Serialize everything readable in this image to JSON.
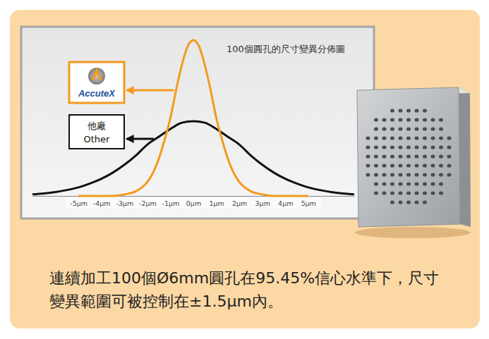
{
  "chart_data": {
    "type": "line",
    "title": "100個圓孔的尺寸變異分佈圖",
    "xlim": [
      -7,
      7
    ],
    "ylim": [
      0,
      1.05
    ],
    "xticks": [
      {
        "value": -5,
        "label": "-5µm"
      },
      {
        "value": -4,
        "label": "-4µm"
      },
      {
        "value": -3,
        "label": "-3µm"
      },
      {
        "value": -2,
        "label": "-2µm"
      },
      {
        "value": -1,
        "label": "-1µm"
      },
      {
        "value": 0,
        "label": "0µm"
      },
      {
        "value": 1,
        "label": "1µm"
      },
      {
        "value": 2,
        "label": "2µm"
      },
      {
        "value": 3,
        "label": "3µm"
      },
      {
        "value": 4,
        "label": "4µm"
      },
      {
        "value": 5,
        "label": "5µm"
      }
    ],
    "tick_labels": "x",
    "grid": false,
    "series": [
      {
        "color": "#f39a1e",
        "x": [
          -5,
          -4.5,
          -4,
          -3.5,
          -3,
          -2.5,
          -2,
          -1.75,
          -1.5,
          -1.25,
          -1,
          -0.75,
          -0.5,
          -0.25,
          0,
          0.25,
          0.5,
          0.75,
          1,
          1.25,
          1.5,
          1.75,
          2,
          2.5,
          3,
          3.5,
          4,
          4.5,
          5
        ],
        "values": [
          0,
          0,
          0,
          0,
          0.01,
          0.03,
          0.09,
          0.15,
          0.24,
          0.36,
          0.5,
          0.68,
          0.84,
          0.96,
          1,
          0.96,
          0.84,
          0.68,
          0.5,
          0.36,
          0.24,
          0.15,
          0.09,
          0.03,
          0.01,
          0,
          0,
          0,
          0
        ]
      },
      {
        "color": "#111111",
        "x": [
          -7,
          -6.5,
          -6,
          -5.5,
          -5,
          -4.5,
          -4,
          -3.5,
          -3,
          -2.5,
          -2,
          -1.5,
          -1,
          -0.5,
          0,
          0.5,
          1,
          1.5,
          2,
          2.5,
          3,
          3.5,
          4,
          4.5,
          5,
          5.5,
          6,
          6.5,
          7
        ],
        "values": [
          0.01,
          0.016,
          0.025,
          0.038,
          0.055,
          0.08,
          0.11,
          0.15,
          0.2,
          0.26,
          0.33,
          0.38,
          0.43,
          0.47,
          0.48,
          0.47,
          0.43,
          0.38,
          0.33,
          0.26,
          0.2,
          0.15,
          0.11,
          0.08,
          0.055,
          0.038,
          0.025,
          0.016,
          0.01
        ]
      }
    ],
    "annotations": [
      {
        "lines": [
          "AccuteX"
        ],
        "series": 0
      },
      {
        "lines": [
          "他廠",
          "Other"
        ],
        "series": 1
      }
    ]
  },
  "caption": "連續加工100個Ø6mm圓孔在95.45%信心水準下，尺寸變異範圍可被控制在±1.5µm內。"
}
